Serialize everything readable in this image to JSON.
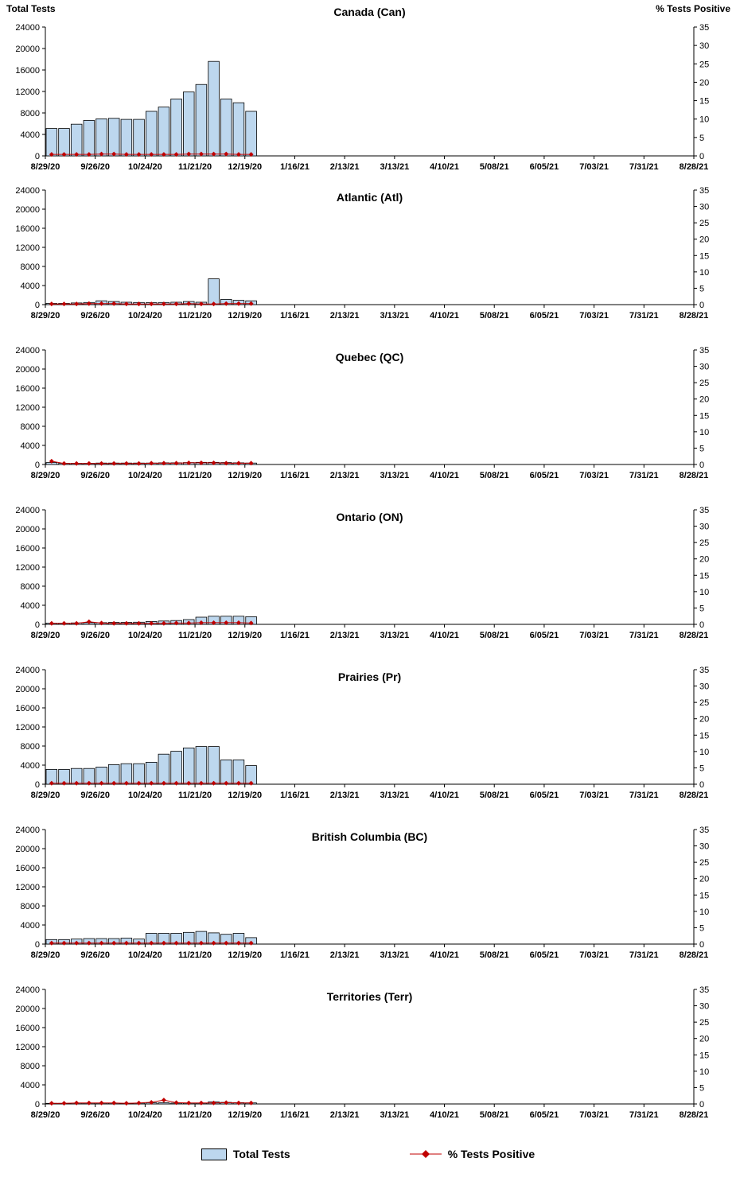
{
  "left_axis": {
    "label": "Total Tests",
    "ticks": [
      0,
      4000,
      8000,
      12000,
      16000,
      20000,
      24000
    ],
    "max": 24000
  },
  "right_axis": {
    "label": "% Tests Positive",
    "ticks": [
      0,
      5,
      10,
      15,
      20,
      25,
      30,
      35
    ],
    "max": 35
  },
  "x_tick_labels": [
    "8/29/20",
    "9/26/20",
    "10/24/20",
    "11/21/20",
    "12/19/20",
    "1/16/21",
    "2/13/21",
    "3/13/21",
    "4/10/21",
    "5/08/21",
    "6/05/21",
    "7/03/21",
    "7/31/21",
    "8/28/21"
  ],
  "legend": {
    "bar_label": "Total Tests",
    "line_label": "% Tests Positive"
  },
  "colors": {
    "bar_fill": "#BDD7EE",
    "bar_stroke": "#000000",
    "line": "#C00000",
    "marker": "#C00000",
    "axis": "#000000"
  },
  "x_weeks": [
    "8/29/20",
    "9/5/20",
    "9/12/20",
    "9/19/20",
    "9/26/20",
    "10/3/20",
    "10/10/20",
    "10/17/20",
    "10/24/20",
    "10/31/20",
    "11/7/20",
    "11/14/20",
    "11/21/20",
    "11/28/20",
    "12/5/20",
    "12/12/20",
    "12/19/20"
  ],
  "total_weeks_span": 52,
  "chart_data": [
    {
      "id": "canada",
      "type": "bar",
      "title": "Canada (Can)",
      "series": [
        {
          "name": "Total Tests",
          "axis": "left",
          "values": [
            5100,
            5100,
            5900,
            6600,
            6900,
            7000,
            6800,
            6800,
            8300,
            9100,
            10600,
            11900,
            13300,
            17600,
            10600,
            9900,
            8300
          ]
        },
        {
          "name": "% Tests Positive",
          "axis": "right",
          "values": [
            0.4,
            0.4,
            0.4,
            0.4,
            0.5,
            0.5,
            0.4,
            0.4,
            0.4,
            0.4,
            0.4,
            0.5,
            0.5,
            0.5,
            0.5,
            0.4,
            0.4
          ]
        }
      ]
    },
    {
      "id": "atlantic",
      "type": "bar",
      "title": "Atlantic (Atl)",
      "series": [
        {
          "name": "Total Tests",
          "axis": "left",
          "values": [
            250,
            250,
            350,
            450,
            800,
            650,
            500,
            450,
            400,
            450,
            500,
            650,
            500,
            5400,
            1100,
            900,
            800
          ]
        },
        {
          "name": "% Tests Positive",
          "axis": "right",
          "values": [
            0.2,
            0.2,
            0.2,
            0.3,
            0.3,
            0.3,
            0.2,
            0.2,
            0.2,
            0.2,
            0.2,
            0.3,
            0.2,
            0.2,
            0.3,
            0.3,
            0.3
          ]
        }
      ]
    },
    {
      "id": "quebec",
      "type": "bar",
      "title": "Quebec (QC)",
      "series": [
        {
          "name": "Total Tests",
          "axis": "left",
          "values": [
            400,
            250,
            250,
            250,
            300,
            300,
            300,
            300,
            300,
            350,
            350,
            400,
            450,
            450,
            400,
            350,
            300
          ]
        },
        {
          "name": "% Tests Positive",
          "axis": "right",
          "values": [
            1.0,
            0.3,
            0.3,
            0.3,
            0.3,
            0.3,
            0.3,
            0.3,
            0.4,
            0.4,
            0.4,
            0.5,
            0.5,
            0.5,
            0.4,
            0.4,
            0.4
          ]
        }
      ]
    },
    {
      "id": "ontario",
      "type": "bar",
      "title": "Ontario (ON)",
      "series": [
        {
          "name": "Total Tests",
          "axis": "left",
          "values": [
            250,
            250,
            300,
            350,
            350,
            400,
            400,
            450,
            600,
            700,
            800,
            1000,
            1500,
            1700,
            1700,
            1700,
            1600
          ]
        },
        {
          "name": "% Tests Positive",
          "axis": "right",
          "values": [
            0.3,
            0.3,
            0.3,
            0.8,
            0.4,
            0.3,
            0.3,
            0.3,
            0.3,
            0.3,
            0.4,
            0.4,
            0.5,
            0.5,
            0.5,
            0.5,
            0.4
          ]
        }
      ]
    },
    {
      "id": "prairies",
      "type": "bar",
      "title": "Prairies (Pr)",
      "series": [
        {
          "name": "Total Tests",
          "axis": "left",
          "values": [
            3100,
            3100,
            3300,
            3300,
            3600,
            4100,
            4300,
            4300,
            4600,
            6300,
            6900,
            7600,
            7900,
            7900,
            5100,
            5100,
            3900
          ]
        },
        {
          "name": "% Tests Positive",
          "axis": "right",
          "values": [
            0.3,
            0.3,
            0.3,
            0.3,
            0.3,
            0.3,
            0.3,
            0.3,
            0.3,
            0.3,
            0.3,
            0.3,
            0.3,
            0.3,
            0.3,
            0.3,
            0.3
          ]
        }
      ]
    },
    {
      "id": "british-columbia",
      "type": "bar",
      "title": "British Columbia (BC)",
      "series": [
        {
          "name": "Total Tests",
          "axis": "left",
          "values": [
            950,
            950,
            1050,
            1150,
            1150,
            1150,
            1250,
            1050,
            2250,
            2250,
            2250,
            2450,
            2650,
            2350,
            2050,
            2250,
            1350
          ]
        },
        {
          "name": "% Tests Positive",
          "axis": "right",
          "values": [
            0.3,
            0.3,
            0.3,
            0.3,
            0.3,
            0.3,
            0.3,
            0.3,
            0.3,
            0.3,
            0.3,
            0.3,
            0.3,
            0.3,
            0.3,
            0.3,
            0.3
          ]
        }
      ]
    },
    {
      "id": "territories",
      "type": "bar",
      "title": "Territories (Terr)",
      "series": [
        {
          "name": "Total Tests",
          "axis": "left",
          "values": [
            120,
            120,
            180,
            180,
            180,
            180,
            130,
            180,
            250,
            250,
            180,
            180,
            180,
            450,
            330,
            280,
            220
          ]
        },
        {
          "name": "% Tests Positive",
          "axis": "right",
          "values": [
            0.2,
            0.2,
            0.3,
            0.3,
            0.3,
            0.3,
            0.2,
            0.3,
            0.5,
            1.2,
            0.4,
            0.3,
            0.3,
            0.3,
            0.4,
            0.3,
            0.3
          ]
        }
      ]
    }
  ]
}
